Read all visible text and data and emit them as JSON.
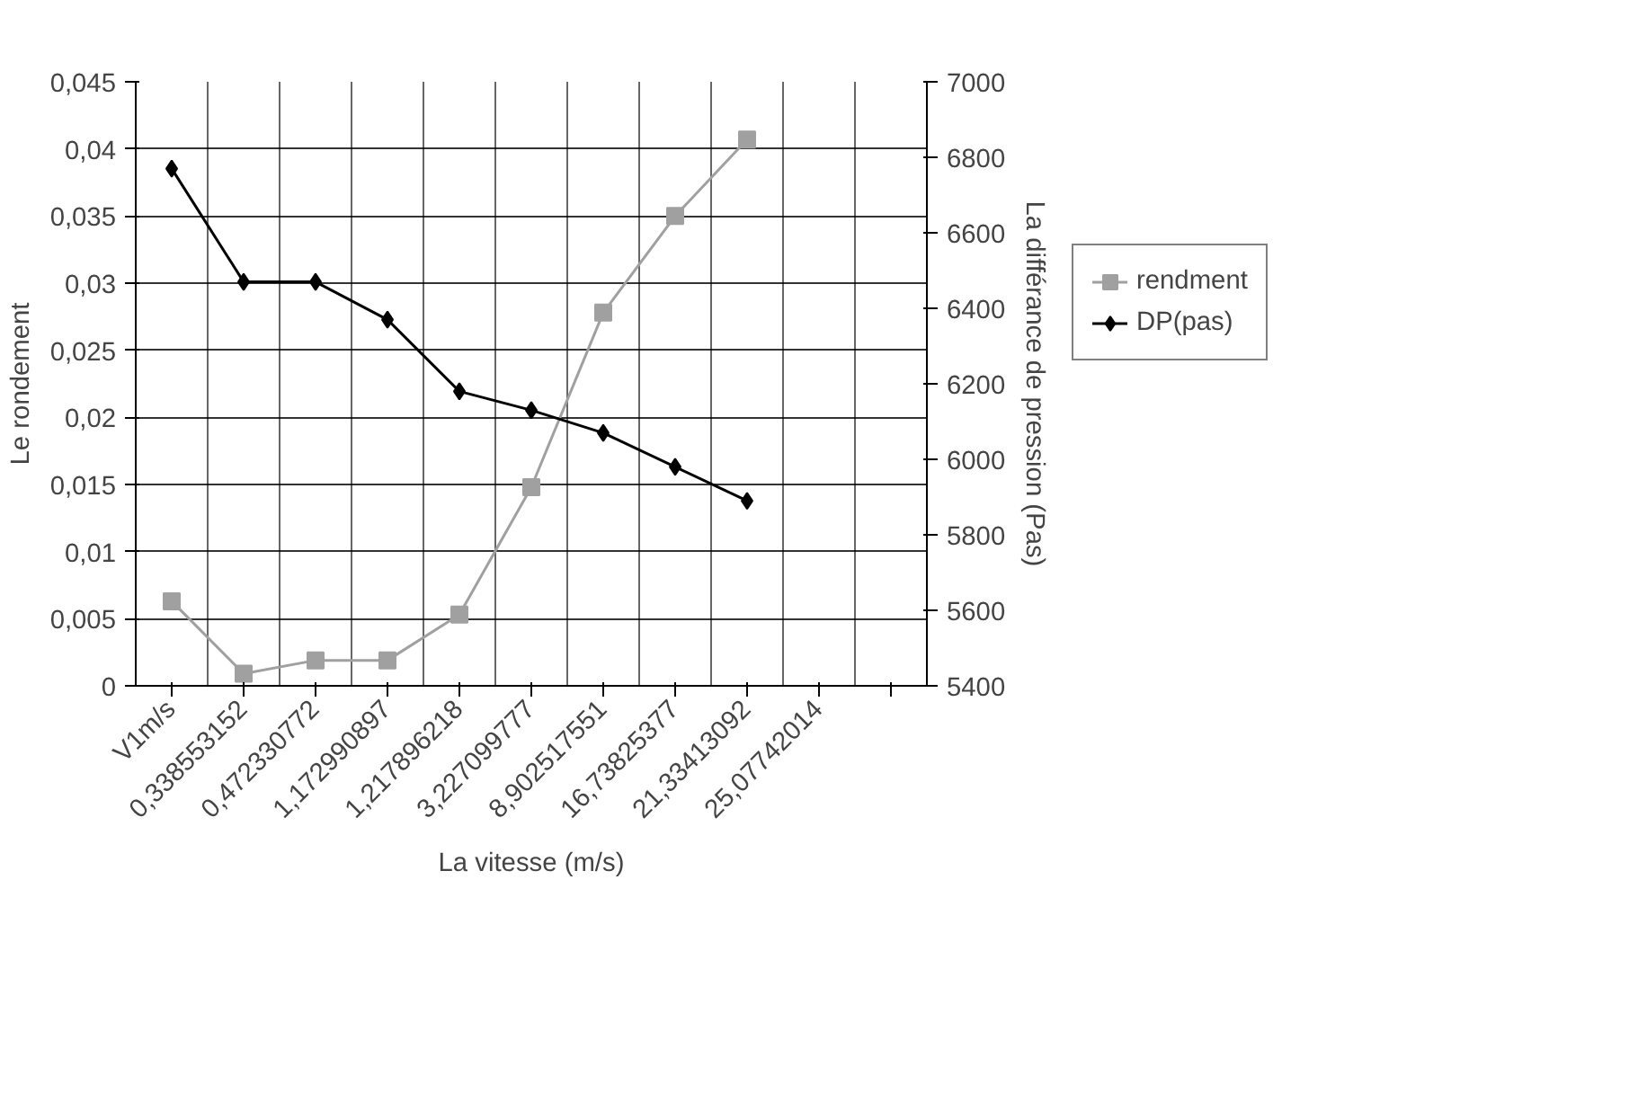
{
  "chart_data": {
    "type": "line",
    "xlabel": "La vitesse (m/s)",
    "ylabel": "Le rondement",
    "y2label": "La différance de pression (Pas)",
    "categories": [
      "V1m/s",
      "0,338553152",
      "0,472330772",
      "1,172990897",
      "1,217896218",
      "3,227099777",
      "8,902517551",
      "16,73825377",
      "21,33413092",
      "25,07742014",
      null
    ],
    "series": [
      {
        "name": "rendment",
        "color": "#a0a0a0",
        "marker": "square",
        "values": [
          0.0063,
          0.0009,
          0.0019,
          0.0019,
          0.0053,
          0.0148,
          0.0278,
          0.035,
          0.0407,
          null,
          null
        ]
      },
      {
        "name": "DP(pas)",
        "color": "#000000",
        "marker": "diamond",
        "axis": "y2",
        "values": [
          6770,
          6470,
          6470,
          6370,
          6180,
          6130,
          6070,
          5980,
          5890,
          null,
          null
        ]
      }
    ],
    "ylim": [
      0,
      0.045
    ],
    "yticks": [
      {
        "value": 0,
        "label": "0"
      },
      {
        "value": 0.005,
        "label": "0,005"
      },
      {
        "value": 0.01,
        "label": "0,01"
      },
      {
        "value": 0.015,
        "label": "0,015"
      },
      {
        "value": 0.02,
        "label": "0,02"
      },
      {
        "value": 0.025,
        "label": "0,025"
      },
      {
        "value": 0.03,
        "label": "0,03"
      },
      {
        "value": 0.035,
        "label": "0,035"
      },
      {
        "value": 0.04,
        "label": "0,04"
      },
      {
        "value": 0.045,
        "label": "0,045"
      }
    ],
    "y2lim": [
      5400,
      7000
    ],
    "y2ticks": [
      5400,
      5600,
      5800,
      6000,
      6200,
      6400,
      6600,
      6800,
      7000
    ],
    "grid": true,
    "legend": "right"
  }
}
